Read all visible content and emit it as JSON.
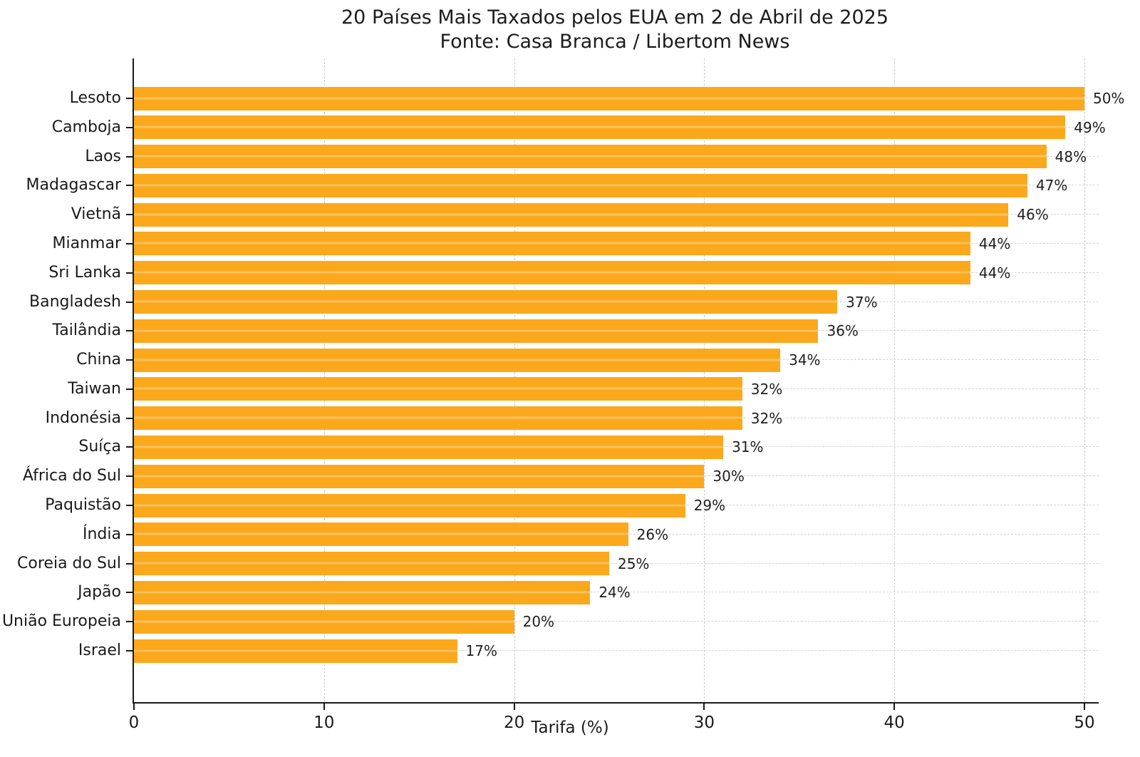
{
  "title": "20 Países Mais Taxados pelos EUA em 2 de Abril de 2025",
  "subtitle": "Fonte: Casa Branca / Libertom News",
  "chart_data": {
    "type": "bar",
    "orientation": "horizontal",
    "title": "20 Países Mais Taxados pelos EUA em 2 de Abril de 2025",
    "subtitle": "Fonte: Casa Branca / Libertom News",
    "categories": [
      "Lesoto",
      "Camboja",
      "Laos",
      "Madagascar",
      "Vietnã",
      "Mianmar",
      "Sri Lanka",
      "Bangladesh",
      "Tailândia",
      "China",
      "Taiwan",
      "Indonésia",
      "Suíça",
      "África do Sul",
      "Paquistão",
      "Índia",
      "Coreia do Sul",
      "Japão",
      "União Europeia",
      "Israel"
    ],
    "values": [
      50,
      49,
      48,
      47,
      46,
      44,
      44,
      37,
      36,
      34,
      32,
      32,
      31,
      30,
      29,
      26,
      25,
      24,
      20,
      17
    ],
    "value_suffix": "%",
    "xlabel": "Tarifa (%)",
    "x_ticks": [
      0,
      10,
      20,
      30,
      40,
      50
    ],
    "xlim": [
      0,
      50.75
    ],
    "grid_style": "dashed",
    "grid_color": "#cdcdcd",
    "bar_color": "#FBA81C",
    "text_color": "#1a1a1a",
    "legend": "none"
  }
}
